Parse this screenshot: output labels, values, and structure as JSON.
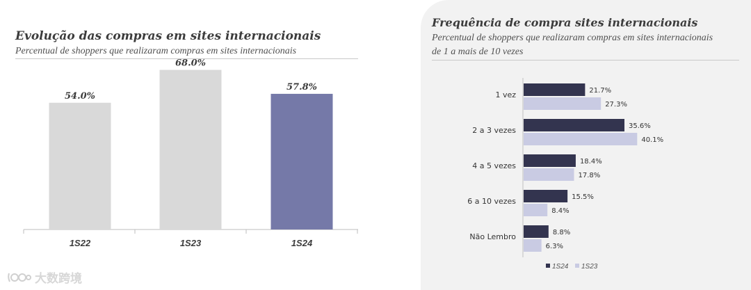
{
  "left": {
    "title": "Evolução das compras em sites internacionais",
    "subtitle": "Percentual de shoppers que realizaram compras em sites internacionais"
  },
  "right": {
    "title": "Frequência de compra sites internacionais",
    "subtitle": "Percentual  de shoppers que realizaram compras em sites internacionais de 1 a mais de 10 vezes"
  },
  "watermark": {
    "text": "大数跨境"
  },
  "colors": {
    "gray_bar": "#d9d9d9",
    "highlight_bar": "#7579a8",
    "series_dark": "#33344f",
    "series_light": "#c9cbe3"
  },
  "chart_data": [
    {
      "type": "bar",
      "categories": [
        "1S22",
        "1S23",
        "1S24"
      ],
      "values": [
        54.0,
        68.0,
        57.8
      ],
      "data_labels": [
        "54.0%",
        "68.0%",
        "57.8%"
      ],
      "bar_colors": [
        "#d9d9d9",
        "#d9d9d9",
        "#7579a8"
      ],
      "ylim": [
        0,
        80
      ],
      "grid": false
    },
    {
      "type": "bar",
      "orientation": "horizontal",
      "categories": [
        "1 vez",
        "2 a 3 vezes",
        "4 a 5 vezes",
        "6 a 10 vezes",
        "Não Lembro"
      ],
      "series": [
        {
          "name": "1S24",
          "color": "#33344f",
          "values": [
            21.7,
            35.6,
            18.4,
            15.5,
            8.8
          ],
          "labels": [
            "21.7%",
            "35.6%",
            "18.4%",
            "15.5%",
            "8.8%"
          ]
        },
        {
          "name": "1S23",
          "color": "#c9cbe3",
          "values": [
            27.3,
            40.1,
            17.8,
            8.4,
            6.3
          ],
          "labels": [
            "27.3%",
            "40.1%",
            "17.8%",
            "8.4%",
            "6.3%"
          ]
        }
      ],
      "xlim": [
        0,
        45
      ],
      "legend": "bottom",
      "grid": false
    }
  ]
}
